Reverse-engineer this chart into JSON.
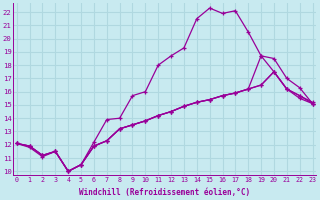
{
  "background_color": "#c8eaf0",
  "grid_color": "#b0d8e0",
  "line_color": "#990099",
  "xlim": [
    -0.3,
    23.3
  ],
  "ylim": [
    9.7,
    22.7
  ],
  "xticks": [
    0,
    1,
    2,
    3,
    4,
    5,
    6,
    7,
    8,
    9,
    10,
    11,
    12,
    13,
    14,
    15,
    16,
    17,
    18,
    19,
    20,
    21,
    22,
    23
  ],
  "yticks": [
    10,
    11,
    12,
    13,
    14,
    15,
    16,
    17,
    18,
    19,
    20,
    21,
    22
  ],
  "xlabel": "Windchill (Refroidissement éolien,°C)",
  "line1_x": [
    0,
    1,
    2,
    3,
    4,
    5,
    6,
    7,
    8,
    9,
    10,
    11,
    12,
    13,
    14,
    15,
    16,
    17,
    18,
    19,
    20,
    21,
    22,
    23
  ],
  "line1_y": [
    12.1,
    11.8,
    11.1,
    11.5,
    10.0,
    10.5,
    12.2,
    13.9,
    14.0,
    15.7,
    16.0,
    18.0,
    18.7,
    19.3,
    21.5,
    22.3,
    21.9,
    22.1,
    20.5,
    18.7,
    17.5,
    16.2,
    15.5,
    15.1
  ],
  "line2_x": [
    0,
    1,
    2,
    3,
    4,
    5,
    6,
    7,
    8,
    9,
    10,
    11,
    12,
    13,
    14,
    15,
    16,
    17,
    18,
    19,
    20,
    21,
    22,
    23
  ],
  "line2_y": [
    12.1,
    11.9,
    11.2,
    11.5,
    10.0,
    10.5,
    11.9,
    12.3,
    13.2,
    13.5,
    13.8,
    14.2,
    14.5,
    14.9,
    15.2,
    15.4,
    15.7,
    15.9,
    16.2,
    16.5,
    17.5,
    16.2,
    15.7,
    15.1
  ],
  "line3_x": [
    0,
    1,
    2,
    3,
    4,
    5,
    6,
    7,
    8,
    9,
    10,
    11,
    12,
    13,
    14,
    15,
    16,
    17,
    18,
    19,
    20,
    21,
    22,
    23
  ],
  "line3_y": [
    12.1,
    11.9,
    11.2,
    11.5,
    10.0,
    10.5,
    11.9,
    12.3,
    13.2,
    13.5,
    13.8,
    14.2,
    14.5,
    14.9,
    15.2,
    15.4,
    15.7,
    15.9,
    16.2,
    18.7,
    18.5,
    17.0,
    16.3,
    15.1
  ],
  "line4_x": [
    0,
    1,
    2,
    3,
    4,
    5,
    6,
    7,
    8,
    9,
    10,
    11,
    12,
    13,
    14,
    15,
    16,
    17,
    18,
    19,
    20,
    21,
    22,
    23
  ],
  "line4_y": [
    12.1,
    11.9,
    11.2,
    11.5,
    10.0,
    10.5,
    11.9,
    12.3,
    13.2,
    13.5,
    13.8,
    14.2,
    14.5,
    14.9,
    15.2,
    15.4,
    15.7,
    15.9,
    16.2,
    16.5,
    17.5,
    16.2,
    15.7,
    15.2
  ]
}
